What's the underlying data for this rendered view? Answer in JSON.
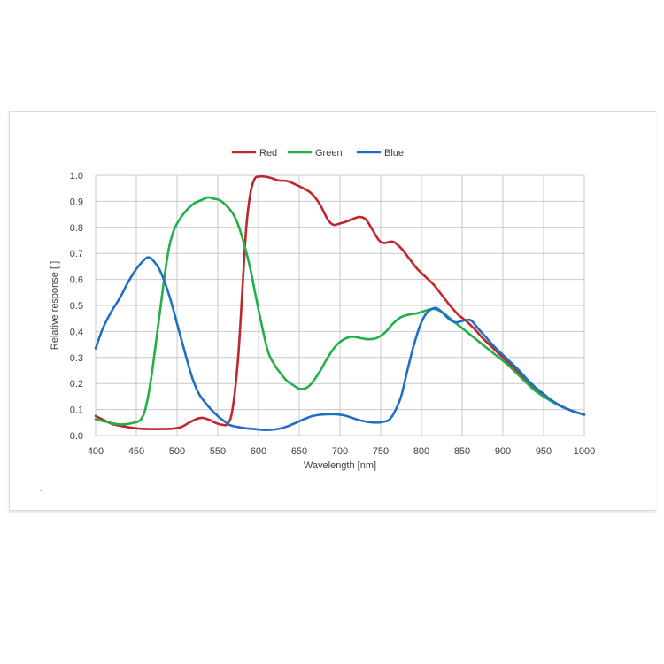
{
  "chart_data": {
    "type": "line",
    "xlabel": "Wavelength [nm]",
    "ylabel": "Relative response [ ]",
    "xlim": [
      400,
      1000
    ],
    "ylim": [
      0,
      1.0
    ],
    "x_ticks": [
      "400",
      "450",
      "500",
      "550",
      "600",
      "650",
      "700",
      "750",
      "800",
      "850",
      "900",
      "950",
      "1000"
    ],
    "y_ticks": [
      "0.0",
      "0.1",
      "0.2",
      "0.3",
      "0.4",
      "0.5",
      "0.6",
      "0.7",
      "0.8",
      "0.9",
      "1.0"
    ],
    "grid": true,
    "legend_position": "top-center",
    "series": [
      {
        "name": "Red",
        "color": "#c0272d",
        "points": [
          [
            400,
            0.075
          ],
          [
            410,
            0.06
          ],
          [
            420,
            0.045
          ],
          [
            435,
            0.035
          ],
          [
            450,
            0.028
          ],
          [
            465,
            0.025
          ],
          [
            480,
            0.025
          ],
          [
            495,
            0.027
          ],
          [
            505,
            0.033
          ],
          [
            515,
            0.05
          ],
          [
            525,
            0.065
          ],
          [
            532,
            0.068
          ],
          [
            540,
            0.06
          ],
          [
            548,
            0.048
          ],
          [
            555,
            0.042
          ],
          [
            562,
            0.045
          ],
          [
            568,
            0.1
          ],
          [
            575,
            0.3
          ],
          [
            580,
            0.55
          ],
          [
            585,
            0.8
          ],
          [
            590,
            0.93
          ],
          [
            595,
            0.985
          ],
          [
            600,
            0.995
          ],
          [
            608,
            0.995
          ],
          [
            615,
            0.99
          ],
          [
            625,
            0.98
          ],
          [
            635,
            0.978
          ],
          [
            645,
            0.965
          ],
          [
            655,
            0.95
          ],
          [
            665,
            0.93
          ],
          [
            675,
            0.89
          ],
          [
            685,
            0.83
          ],
          [
            692,
            0.81
          ],
          [
            700,
            0.815
          ],
          [
            710,
            0.825
          ],
          [
            718,
            0.835
          ],
          [
            725,
            0.84
          ],
          [
            732,
            0.83
          ],
          [
            740,
            0.79
          ],
          [
            748,
            0.75
          ],
          [
            755,
            0.74
          ],
          [
            765,
            0.745
          ],
          [
            775,
            0.72
          ],
          [
            785,
            0.68
          ],
          [
            795,
            0.64
          ],
          [
            805,
            0.61
          ],
          [
            815,
            0.58
          ],
          [
            825,
            0.54
          ],
          [
            835,
            0.5
          ],
          [
            845,
            0.465
          ],
          [
            855,
            0.44
          ],
          [
            865,
            0.41
          ],
          [
            875,
            0.375
          ],
          [
            885,
            0.345
          ],
          [
            895,
            0.315
          ],
          [
            905,
            0.285
          ],
          [
            915,
            0.255
          ],
          [
            925,
            0.225
          ],
          [
            935,
            0.195
          ],
          [
            945,
            0.168
          ],
          [
            955,
            0.145
          ],
          [
            965,
            0.125
          ],
          [
            975,
            0.108
          ],
          [
            985,
            0.095
          ],
          [
            1000,
            0.08
          ]
        ]
      },
      {
        "name": "Green",
        "color": "#22b04b",
        "points": [
          [
            400,
            0.063
          ],
          [
            410,
            0.055
          ],
          [
            420,
            0.048
          ],
          [
            430,
            0.043
          ],
          [
            440,
            0.045
          ],
          [
            450,
            0.052
          ],
          [
            455,
            0.06
          ],
          [
            460,
            0.09
          ],
          [
            465,
            0.16
          ],
          [
            470,
            0.26
          ],
          [
            475,
            0.38
          ],
          [
            480,
            0.5
          ],
          [
            485,
            0.62
          ],
          [
            490,
            0.72
          ],
          [
            495,
            0.78
          ],
          [
            500,
            0.815
          ],
          [
            510,
            0.86
          ],
          [
            520,
            0.89
          ],
          [
            530,
            0.905
          ],
          [
            538,
            0.915
          ],
          [
            545,
            0.91
          ],
          [
            552,
            0.905
          ],
          [
            560,
            0.885
          ],
          [
            568,
            0.855
          ],
          [
            575,
            0.81
          ],
          [
            582,
            0.74
          ],
          [
            590,
            0.64
          ],
          [
            597,
            0.53
          ],
          [
            605,
            0.41
          ],
          [
            612,
            0.32
          ],
          [
            620,
            0.27
          ],
          [
            628,
            0.235
          ],
          [
            635,
            0.21
          ],
          [
            642,
            0.195
          ],
          [
            650,
            0.18
          ],
          [
            658,
            0.182
          ],
          [
            665,
            0.2
          ],
          [
            675,
            0.245
          ],
          [
            685,
            0.3
          ],
          [
            695,
            0.345
          ],
          [
            705,
            0.37
          ],
          [
            715,
            0.38
          ],
          [
            725,
            0.375
          ],
          [
            735,
            0.37
          ],
          [
            745,
            0.375
          ],
          [
            755,
            0.395
          ],
          [
            765,
            0.43
          ],
          [
            775,
            0.455
          ],
          [
            785,
            0.465
          ],
          [
            795,
            0.47
          ],
          [
            805,
            0.48
          ],
          [
            815,
            0.487
          ],
          [
            825,
            0.475
          ],
          [
            835,
            0.45
          ],
          [
            845,
            0.425
          ],
          [
            855,
            0.4
          ],
          [
            865,
            0.375
          ],
          [
            875,
            0.35
          ],
          [
            885,
            0.325
          ],
          [
            895,
            0.3
          ],
          [
            905,
            0.275
          ],
          [
            915,
            0.245
          ],
          [
            925,
            0.215
          ],
          [
            935,
            0.185
          ],
          [
            945,
            0.16
          ],
          [
            955,
            0.14
          ],
          [
            965,
            0.122
          ],
          [
            975,
            0.107
          ],
          [
            985,
            0.095
          ],
          [
            1000,
            0.08
          ]
        ]
      },
      {
        "name": "Blue",
        "color": "#1f6fc5",
        "points": [
          [
            400,
            0.335
          ],
          [
            405,
            0.38
          ],
          [
            410,
            0.42
          ],
          [
            420,
            0.48
          ],
          [
            430,
            0.53
          ],
          [
            440,
            0.59
          ],
          [
            450,
            0.64
          ],
          [
            458,
            0.67
          ],
          [
            464,
            0.685
          ],
          [
            470,
            0.675
          ],
          [
            478,
            0.64
          ],
          [
            486,
            0.58
          ],
          [
            494,
            0.5
          ],
          [
            500,
            0.43
          ],
          [
            507,
            0.35
          ],
          [
            514,
            0.27
          ],
          [
            520,
            0.21
          ],
          [
            527,
            0.16
          ],
          [
            535,
            0.125
          ],
          [
            542,
            0.1
          ],
          [
            550,
            0.075
          ],
          [
            558,
            0.055
          ],
          [
            565,
            0.04
          ],
          [
            575,
            0.033
          ],
          [
            585,
            0.028
          ],
          [
            595,
            0.025
          ],
          [
            605,
            0.022
          ],
          [
            615,
            0.022
          ],
          [
            625,
            0.026
          ],
          [
            635,
            0.035
          ],
          [
            645,
            0.048
          ],
          [
            655,
            0.062
          ],
          [
            665,
            0.074
          ],
          [
            675,
            0.08
          ],
          [
            685,
            0.082
          ],
          [
            695,
            0.082
          ],
          [
            705,
            0.078
          ],
          [
            715,
            0.068
          ],
          [
            725,
            0.058
          ],
          [
            735,
            0.052
          ],
          [
            745,
            0.05
          ],
          [
            752,
            0.052
          ],
          [
            760,
            0.06
          ],
          [
            767,
            0.09
          ],
          [
            775,
            0.15
          ],
          [
            782,
            0.24
          ],
          [
            790,
            0.34
          ],
          [
            798,
            0.42
          ],
          [
            805,
            0.465
          ],
          [
            812,
            0.485
          ],
          [
            818,
            0.49
          ],
          [
            825,
            0.475
          ],
          [
            835,
            0.445
          ],
          [
            842,
            0.435
          ],
          [
            850,
            0.44
          ],
          [
            857,
            0.445
          ],
          [
            862,
            0.44
          ],
          [
            870,
            0.41
          ],
          [
            880,
            0.375
          ],
          [
            890,
            0.34
          ],
          [
            900,
            0.31
          ],
          [
            910,
            0.28
          ],
          [
            920,
            0.25
          ],
          [
            930,
            0.215
          ],
          [
            940,
            0.185
          ],
          [
            950,
            0.16
          ],
          [
            960,
            0.135
          ],
          [
            970,
            0.115
          ],
          [
            985,
            0.095
          ],
          [
            1000,
            0.08
          ]
        ]
      }
    ]
  }
}
